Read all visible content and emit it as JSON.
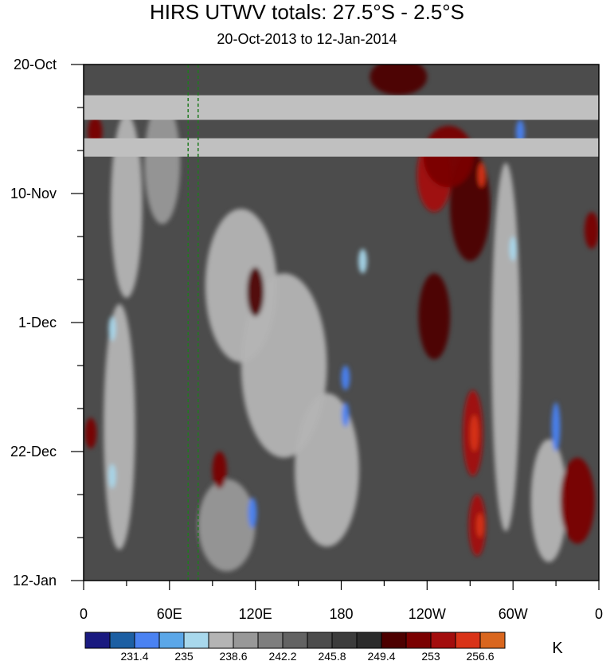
{
  "chart_data": {
    "type": "heatmap",
    "title": "HIRS UTWV totals: 27.5°S - 2.5°S",
    "subtitle": "20-Oct-2013 to 12-Jan-2014",
    "x_ticks": [
      {
        "lon": 0,
        "label": "0"
      },
      {
        "lon": 60,
        "label": "60E"
      },
      {
        "lon": 120,
        "label": "120E"
      },
      {
        "lon": 180,
        "label": "180"
      },
      {
        "lon": 240,
        "label": "120W"
      },
      {
        "lon": 300,
        "label": "60W"
      },
      {
        "lon": 360,
        "label": "0"
      }
    ],
    "x_range": [
      0,
      360
    ],
    "y_ticks": [
      {
        "date": "2013-10-20",
        "label": "20-Oct"
      },
      {
        "date": "2013-11-10",
        "label": "10-Nov"
      },
      {
        "date": "2013-12-01",
        "label": "1-Dec"
      },
      {
        "date": "2013-12-22",
        "label": "22-Dec"
      },
      {
        "date": "2014-01-12",
        "label": "12-Jan"
      }
    ],
    "y_range": [
      "2013-10-20",
      "2014-01-12"
    ],
    "y_orientation": "time increases downward",
    "missing_data_bands": [
      {
        "from": "2013-10-25",
        "to": "2013-10-29"
      },
      {
        "from": "2013-11-01",
        "to": "2013-11-04"
      }
    ],
    "reference_lines_lon": [
      73,
      80
    ],
    "colorbar": {
      "unit": "K",
      "labeled_levels": [
        "231.4",
        "235",
        "238.6",
        "242.2",
        "245.8",
        "249.4",
        "253",
        "256.6"
      ],
      "colors": [
        "#1a1a80",
        "#1c5fa3",
        "#4a82f2",
        "#5ba7e8",
        "#a8d8ec",
        "#b4b4b4",
        "#989898",
        "#7e7e7e",
        "#636363",
        "#4c4c4c",
        "#3c3c3c",
        "#2c2c2c",
        "#4d0000",
        "#7a0000",
        "#a30d0d",
        "#d93318",
        "#d9661e"
      ]
    },
    "field": {
      "background_level_color": "#4c4c4c",
      "features": [
        {
          "lon": 30,
          "date": "2013-11-12",
          "level_color": "#b4b4b4",
          "lon_width": 22,
          "day_width": 30
        },
        {
          "lon": 25,
          "date": "2013-12-18",
          "level_color": "#b4b4b4",
          "lon_width": 22,
          "day_width": 40
        },
        {
          "lon": 55,
          "date": "2013-11-05",
          "level_color": "#989898",
          "lon_width": 25,
          "day_width": 20
        },
        {
          "lon": 110,
          "date": "2013-11-25",
          "level_color": "#b4b4b4",
          "lon_width": 50,
          "day_width": 25
        },
        {
          "lon": 140,
          "date": "2013-12-08",
          "level_color": "#b4b4b4",
          "lon_width": 60,
          "day_width": 30
        },
        {
          "lon": 170,
          "date": "2013-12-25",
          "level_color": "#b4b4b4",
          "lon_width": 45,
          "day_width": 25
        },
        {
          "lon": 100,
          "date": "2014-01-03",
          "level_color": "#989898",
          "lon_width": 40,
          "day_width": 15
        },
        {
          "lon": 295,
          "date": "2013-12-05",
          "level_color": "#b4b4b4",
          "lon_width": 20,
          "day_width": 60
        },
        {
          "lon": 325,
          "date": "2013-12-30",
          "level_color": "#b4b4b4",
          "lon_width": 25,
          "day_width": 20
        },
        {
          "lon": 270,
          "date": "2013-11-12",
          "level_color": "#4d0000",
          "lon_width": 28,
          "day_width": 18
        },
        {
          "lon": 245,
          "date": "2013-11-30",
          "level_color": "#4d0000",
          "lon_width": 22,
          "day_width": 14
        },
        {
          "lon": 220,
          "date": "2013-10-22",
          "level_color": "#4d0000",
          "lon_width": 40,
          "day_width": 6
        },
        {
          "lon": 245,
          "date": "2013-11-07",
          "level_color": "#a30d0d",
          "lon_width": 24,
          "day_width": 12
        },
        {
          "lon": 272,
          "date": "2013-12-19",
          "level_color": "#a30d0d",
          "lon_width": 14,
          "day_width": 14
        },
        {
          "lon": 275,
          "date": "2014-01-03",
          "level_color": "#a30d0d",
          "lon_width": 12,
          "day_width": 10
        },
        {
          "lon": 345,
          "date": "2013-12-30",
          "level_color": "#7a0000",
          "lon_width": 24,
          "day_width": 14
        },
        {
          "lon": 255,
          "date": "2013-11-04",
          "level_color": "#7a0000",
          "lon_width": 35,
          "day_width": 10
        },
        {
          "lon": 8,
          "date": "2013-10-31",
          "level_color": "#7a0000",
          "lon_width": 10,
          "day_width": 5
        },
        {
          "lon": 5,
          "date": "2013-12-19",
          "level_color": "#7a0000",
          "lon_width": 8,
          "day_width": 5
        },
        {
          "lon": 355,
          "date": "2013-11-16",
          "level_color": "#7a0000",
          "lon_width": 10,
          "day_width": 6
        },
        {
          "lon": 95,
          "date": "2013-12-25",
          "level_color": "#7a0000",
          "lon_width": 10,
          "day_width": 6
        },
        {
          "lon": 120,
          "date": "2013-11-26",
          "level_color": "#4d0000",
          "lon_width": 12,
          "day_width": 8
        },
        {
          "lon": 273,
          "date": "2013-12-19",
          "level_color": "#d93318",
          "lon_width": 6,
          "day_width": 6
        },
        {
          "lon": 277,
          "date": "2014-01-03",
          "level_color": "#d93318",
          "lon_width": 5,
          "day_width": 4
        },
        {
          "lon": 278,
          "date": "2013-11-07",
          "level_color": "#d93318",
          "lon_width": 5,
          "day_width": 4
        },
        {
          "lon": 20,
          "date": "2013-12-02",
          "level_color": "#a8d8ec",
          "lon_width": 5,
          "day_width": 4
        },
        {
          "lon": 118,
          "date": "2014-01-01",
          "level_color": "#4a82f2",
          "lon_width": 6,
          "day_width": 5
        },
        {
          "lon": 330,
          "date": "2013-12-18",
          "level_color": "#4a82f2",
          "lon_width": 6,
          "day_width": 8
        },
        {
          "lon": 305,
          "date": "2013-10-31",
          "level_color": "#4a82f2",
          "lon_width": 6,
          "day_width": 4
        },
        {
          "lon": 183,
          "date": "2013-12-10",
          "level_color": "#4a82f2",
          "lon_width": 6,
          "day_width": 4
        },
        {
          "lon": 183,
          "date": "2013-12-16",
          "level_color": "#4a82f2",
          "lon_width": 5,
          "day_width": 4
        },
        {
          "lon": 20,
          "date": "2013-12-26",
          "level_color": "#a8d8ec",
          "lon_width": 5,
          "day_width": 4
        },
        {
          "lon": 195,
          "date": "2013-11-21",
          "level_color": "#a8d8ec",
          "lon_width": 6,
          "day_width": 4
        },
        {
          "lon": 300,
          "date": "2013-11-19",
          "level_color": "#a8d8ec",
          "lon_width": 5,
          "day_width": 4
        }
      ]
    }
  }
}
